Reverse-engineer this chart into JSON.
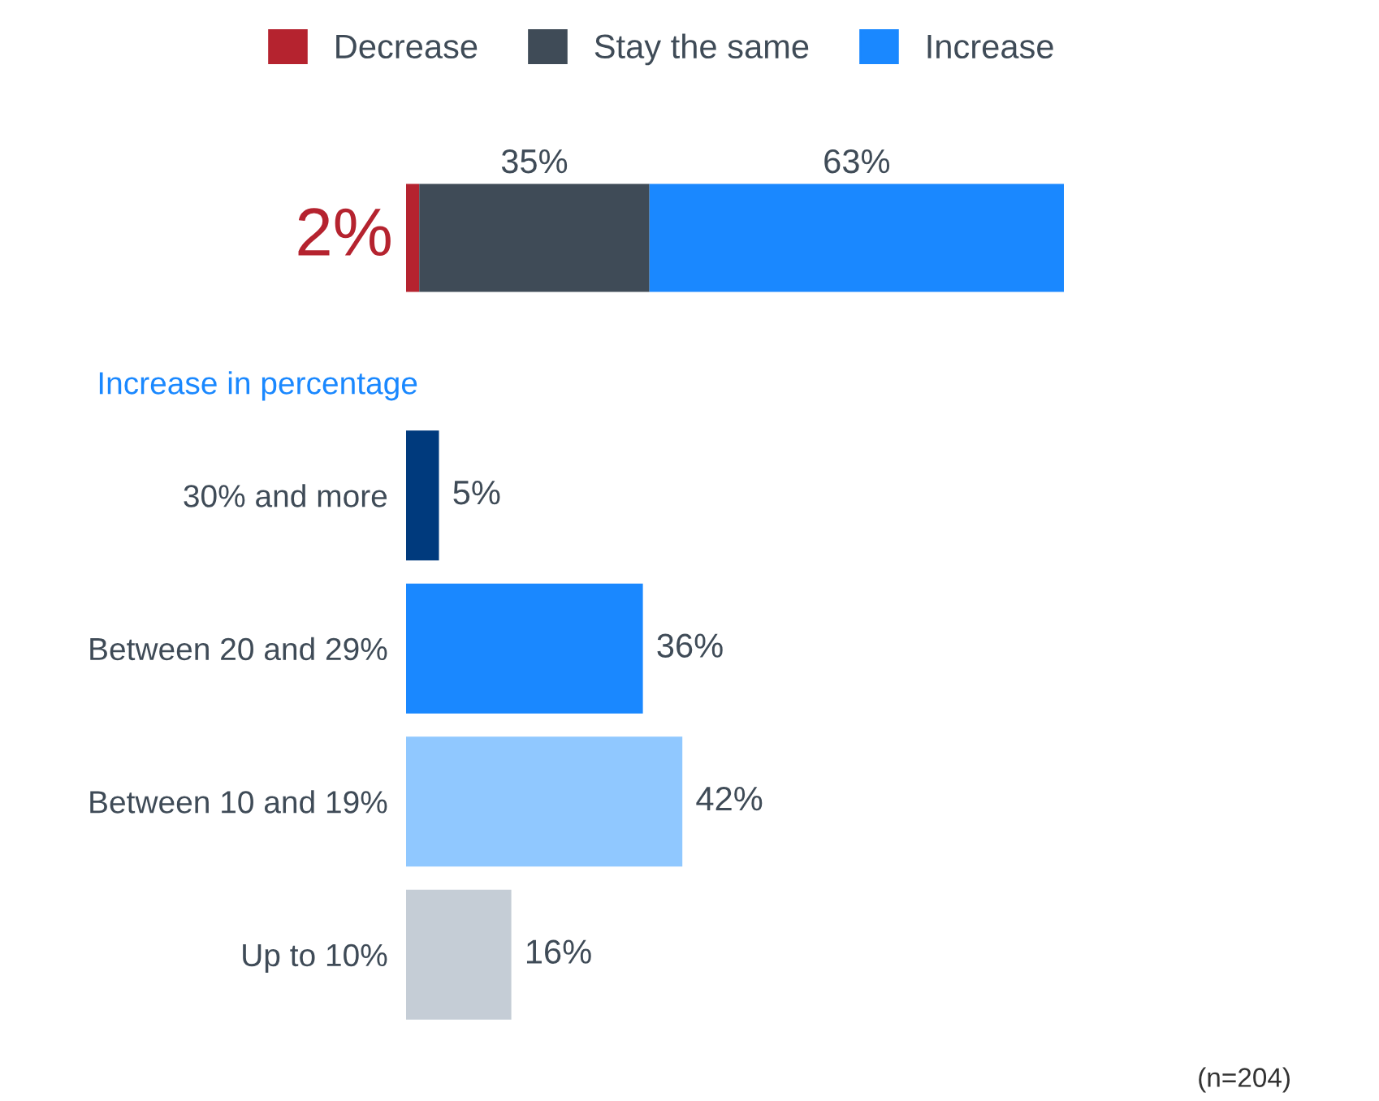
{
  "chart_data": [
    {
      "type": "bar",
      "orientation": "horizontal",
      "stacked": true,
      "categories": [
        null
      ],
      "legend": "top",
      "tick_labels": false,
      "series": [
        {
          "name": "Decrease",
          "color": "#b5232f",
          "values": [
            2
          ],
          "value_labels": [
            "2%"
          ]
        },
        {
          "name": "Stay the same",
          "color": "#3f4b57",
          "values": [
            35
          ],
          "value_labels": [
            "35%"
          ]
        },
        {
          "name": "Increase",
          "color": "#1a88ff",
          "values": [
            63
          ],
          "value_labels": [
            "63%"
          ]
        }
      ]
    },
    {
      "type": "bar",
      "orientation": "horizontal",
      "title": "Increase in percentage",
      "tick_labels": "y",
      "categories": [
        "30% and more",
        "Between 20 and 29%",
        "Between 10 and 19%",
        "Up to 10%"
      ],
      "values": [
        5,
        36,
        42,
        16
      ],
      "value_labels": [
        "5%",
        "36%",
        "42%",
        "16%"
      ],
      "colors": [
        "#003a7d",
        "#1a88ff",
        "#90c8ff",
        "#c5cdd6"
      ],
      "annotations": [
        "(n=204)"
      ]
    }
  ]
}
